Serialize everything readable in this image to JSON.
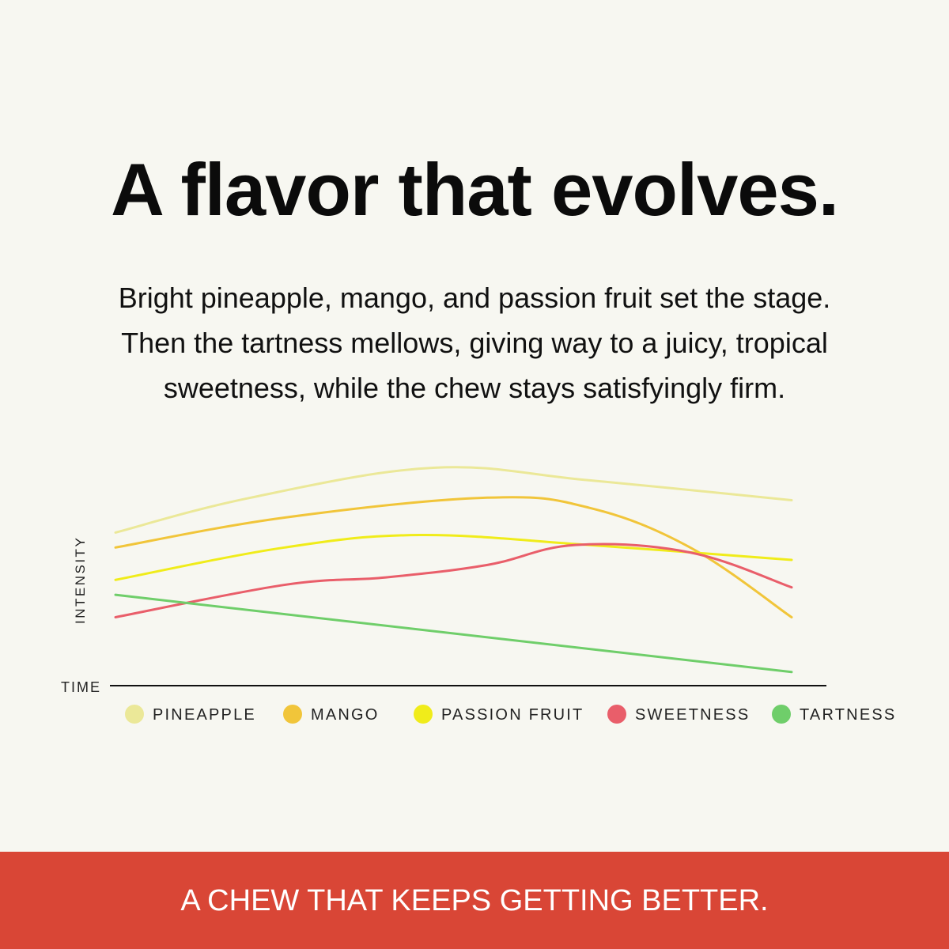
{
  "header": {
    "title": "A flavor that evolves.",
    "description_lines": [
      "Bright pineapple, mango, and passion fruit set the stage.",
      "Then the tartness mellows, giving way to a juicy, tropical",
      "sweetness, while the chew stays satisfyingly firm."
    ]
  },
  "chart_data": {
    "type": "line",
    "xlabel": "TIME",
    "ylabel": "INTENSITY",
    "xlim": [
      0,
      10
    ],
    "ylim": [
      0,
      10
    ],
    "grid": false,
    "tick_labels": "none",
    "legend_position": "bottom",
    "series": [
      {
        "name": "PINEAPPLE",
        "color": "#ebe898",
        "x": [
          0,
          2,
          4.7,
          7,
          10
        ],
        "y": [
          6.4,
          7.8,
          9.0,
          8.5,
          7.7
        ]
      },
      {
        "name": "MANGO",
        "color": "#f1c53a",
        "x": [
          0,
          2.5,
          5.5,
          7,
          8.5,
          10
        ],
        "y": [
          5.8,
          7.0,
          7.8,
          7.4,
          5.8,
          3.0
        ]
      },
      {
        "name": "PASSION FRUIT",
        "color": "#f0ec1a",
        "x": [
          0,
          2.5,
          4.5,
          7,
          10
        ],
        "y": [
          4.5,
          5.8,
          6.3,
          5.9,
          5.3
        ]
      },
      {
        "name": "SWEETNESS",
        "color": "#e95e6a",
        "x": [
          0,
          2.5,
          4,
          5.5,
          6.8,
          8.5,
          10
        ],
        "y": [
          3.0,
          4.3,
          4.6,
          5.1,
          5.9,
          5.6,
          4.2
        ]
      },
      {
        "name": "TARTNESS",
        "color": "#6fce6a",
        "x": [
          0,
          10
        ],
        "y": [
          3.9,
          0.8
        ]
      }
    ]
  },
  "footer": {
    "tagline": "A CHEW THAT KEEPS GETTING BETTER."
  }
}
